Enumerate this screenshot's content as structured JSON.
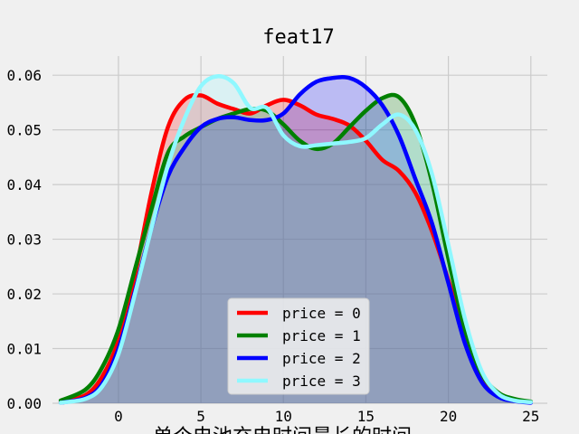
{
  "chart_data": {
    "type": "area",
    "title": "feat17",
    "xlabel": "单个电池充电时间最长的时间",
    "ylabel": "",
    "xlim": [
      -4,
      26
    ],
    "ylim": [
      0,
      0.0635
    ],
    "xticks": [
      0,
      5,
      10,
      15,
      20,
      25
    ],
    "yticks": [
      0.0,
      0.01,
      0.02,
      0.03,
      0.04,
      0.05,
      0.06
    ],
    "xtick_labels": [
      "0",
      "5",
      "10",
      "15",
      "20",
      "25"
    ],
    "ytick_labels": [
      "0.00",
      "0.01",
      "0.02",
      "0.03",
      "0.04",
      "0.05",
      "0.06"
    ],
    "grid": true,
    "legend_position": "bottom-center",
    "series": [
      {
        "name": "price = 0",
        "color": "#ff0000",
        "x": [
          -3.5,
          -2,
          -1,
          0,
          1,
          2,
          3,
          4,
          5,
          6,
          7,
          8,
          9,
          10,
          11,
          12,
          13,
          14,
          15,
          16,
          17,
          18,
          19,
          20,
          21,
          22,
          23,
          24,
          25
        ],
        "y": [
          0.0003,
          0.0015,
          0.0048,
          0.0115,
          0.0235,
          0.0385,
          0.0505,
          0.0555,
          0.0563,
          0.0548,
          0.0538,
          0.053,
          0.0545,
          0.0555,
          0.0545,
          0.0528,
          0.052,
          0.0508,
          0.048,
          0.0445,
          0.0425,
          0.0385,
          0.0315,
          0.0225,
          0.0125,
          0.005,
          0.0015,
          0.0005,
          0.0002
        ]
      },
      {
        "name": "price = 1",
        "color": "#008000",
        "x": [
          -3.5,
          -2,
          -1,
          0,
          1,
          2,
          3,
          4,
          5,
          6,
          7,
          8,
          9,
          10,
          11,
          12,
          13,
          14,
          15,
          16,
          17,
          18,
          19,
          20,
          21,
          22,
          23,
          24,
          25
        ],
        "y": [
          0.0005,
          0.0025,
          0.0065,
          0.0135,
          0.0245,
          0.0355,
          0.0458,
          0.0488,
          0.0505,
          0.052,
          0.053,
          0.0538,
          0.0535,
          0.051,
          0.048,
          0.0465,
          0.0475,
          0.0505,
          0.0535,
          0.0558,
          0.056,
          0.051,
          0.0405,
          0.0265,
          0.0135,
          0.0055,
          0.002,
          0.0008,
          0.0003
        ]
      },
      {
        "name": "price = 2",
        "color": "#0000ff",
        "x": [
          -3.5,
          -2,
          -1,
          0,
          1,
          2,
          3,
          4,
          5,
          6,
          7,
          8,
          9,
          10,
          11,
          12,
          13,
          14,
          15,
          16,
          17,
          18,
          19,
          20,
          21,
          22,
          23,
          24,
          25
        ],
        "y": [
          0.0001,
          0.001,
          0.0035,
          0.01,
          0.0205,
          0.032,
          0.0415,
          0.0468,
          0.0505,
          0.052,
          0.0523,
          0.0518,
          0.0518,
          0.053,
          0.0565,
          0.0588,
          0.0595,
          0.0595,
          0.0578,
          0.0545,
          0.049,
          0.041,
          0.033,
          0.022,
          0.011,
          0.004,
          0.0012,
          0.0004,
          0.0001
        ]
      },
      {
        "name": "price = 3",
        "color": "#8ff8ff",
        "x": [
          -3.5,
          -2,
          -1,
          0,
          1,
          2,
          3,
          4,
          5,
          6,
          7,
          8,
          9,
          10,
          11,
          12,
          13,
          14,
          15,
          16,
          17,
          18,
          19,
          20,
          21,
          22,
          23,
          24,
          25
        ],
        "y": [
          0.0001,
          0.0008,
          0.003,
          0.009,
          0.02,
          0.032,
          0.0435,
          0.052,
          0.058,
          0.0598,
          0.0585,
          0.054,
          0.054,
          0.049,
          0.047,
          0.0472,
          0.0475,
          0.0478,
          0.0485,
          0.051,
          0.0528,
          0.05,
          0.042,
          0.029,
          0.0155,
          0.006,
          0.0018,
          0.0005,
          0.0002
        ]
      }
    ]
  }
}
